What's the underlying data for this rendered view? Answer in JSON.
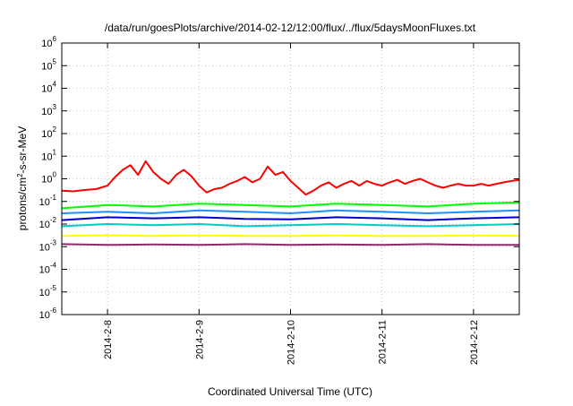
{
  "chart_data": {
    "type": "line",
    "title": "/data/run/goesPlots/archive/2014-02-12/12:00/flux/../flux/5daysMoonFluxes.txt",
    "xlabel": "Coordinated Universal Time (UTC)",
    "ylabel_parts": {
      "before": "protons/cm",
      "sup": "2",
      "after": "-s-sr-MeV"
    },
    "y_scale": "log",
    "ylim": [
      1e-06,
      1000000.0
    ],
    "y_ticks": [
      {
        "value": 1e-06,
        "base": "10",
        "exp": "-6"
      },
      {
        "value": 1e-05,
        "base": "10",
        "exp": "-5"
      },
      {
        "value": 0.0001,
        "base": "10",
        "exp": "-4"
      },
      {
        "value": 0.001,
        "base": "10",
        "exp": "-3"
      },
      {
        "value": 0.01,
        "base": "10",
        "exp": "-2"
      },
      {
        "value": 0.1,
        "base": "10",
        "exp": "-1"
      },
      {
        "value": 1,
        "base": "10",
        "exp": "0"
      },
      {
        "value": 10,
        "base": "10",
        "exp": "1"
      },
      {
        "value": 100,
        "base": "10",
        "exp": "2"
      },
      {
        "value": 1000,
        "base": "10",
        "exp": "3"
      },
      {
        "value": 10000,
        "base": "10",
        "exp": "4"
      },
      {
        "value": 100000,
        "base": "10",
        "exp": "5"
      },
      {
        "value": 1000000,
        "base": "10",
        "exp": "6"
      }
    ],
    "xlim": [
      "2014-02-07T12:00",
      "2014-02-12T12:00"
    ],
    "x_ticks": [
      {
        "value": "2014-02-08T00:00",
        "label": "2014-2-8"
      },
      {
        "value": "2014-02-09T00:00",
        "label": "2014-2-9"
      },
      {
        "value": "2014-02-10T00:00",
        "label": "2014-2-10"
      },
      {
        "value": "2014-02-11T00:00",
        "label": "2014-2-11"
      },
      {
        "value": "2014-02-12T00:00",
        "label": "2014-2-12"
      }
    ],
    "grid": true,
    "legend": "none",
    "series": [
      {
        "color": "#ff0000",
        "values": [
          [
            "2014-02-07T12:00",
            0.3
          ],
          [
            "2014-02-07T15:00",
            0.28
          ],
          [
            "2014-02-07T18:00",
            0.32
          ],
          [
            "2014-02-07T21:00",
            0.35
          ],
          [
            "2014-02-08T00:00",
            0.5
          ],
          [
            "2014-02-08T02:00",
            1.2
          ],
          [
            "2014-02-08T04:00",
            2.5
          ],
          [
            "2014-02-08T06:00",
            4.0
          ],
          [
            "2014-02-08T08:00",
            1.5
          ],
          [
            "2014-02-08T10:00",
            6.0
          ],
          [
            "2014-02-08T12:00",
            2.0
          ],
          [
            "2014-02-08T14:00",
            1.0
          ],
          [
            "2014-02-08T16:00",
            0.6
          ],
          [
            "2014-02-08T18:00",
            1.5
          ],
          [
            "2014-02-08T20:00",
            2.5
          ],
          [
            "2014-02-08T22:00",
            1.3
          ],
          [
            "2014-02-09T00:00",
            0.5
          ],
          [
            "2014-02-09T02:00",
            0.25
          ],
          [
            "2014-02-09T04:00",
            0.35
          ],
          [
            "2014-02-09T06:00",
            0.4
          ],
          [
            "2014-02-09T08:00",
            0.6
          ],
          [
            "2014-02-09T10:00",
            0.8
          ],
          [
            "2014-02-09T12:00",
            1.2
          ],
          [
            "2014-02-09T14:00",
            0.7
          ],
          [
            "2014-02-09T16:00",
            1.0
          ],
          [
            "2014-02-09T18:00",
            3.5
          ],
          [
            "2014-02-09T20:00",
            1.5
          ],
          [
            "2014-02-09T22:00",
            2.0
          ],
          [
            "2014-02-10T00:00",
            0.8
          ],
          [
            "2014-02-10T02:00",
            0.4
          ],
          [
            "2014-02-10T04:00",
            0.2
          ],
          [
            "2014-02-10T06:00",
            0.3
          ],
          [
            "2014-02-10T08:00",
            0.5
          ],
          [
            "2014-02-10T10:00",
            0.7
          ],
          [
            "2014-02-10T12:00",
            0.4
          ],
          [
            "2014-02-10T14:00",
            0.6
          ],
          [
            "2014-02-10T16:00",
            0.8
          ],
          [
            "2014-02-10T18:00",
            0.5
          ],
          [
            "2014-02-10T20:00",
            0.8
          ],
          [
            "2014-02-10T22:00",
            0.6
          ],
          [
            "2014-02-11T00:00",
            0.5
          ],
          [
            "2014-02-11T02:00",
            0.7
          ],
          [
            "2014-02-11T04:00",
            0.9
          ],
          [
            "2014-02-11T06:00",
            0.6
          ],
          [
            "2014-02-11T08:00",
            0.8
          ],
          [
            "2014-02-11T10:00",
            1.0
          ],
          [
            "2014-02-11T12:00",
            0.7
          ],
          [
            "2014-02-11T14:00",
            0.5
          ],
          [
            "2014-02-11T16:00",
            0.4
          ],
          [
            "2014-02-11T18:00",
            0.5
          ],
          [
            "2014-02-11T20:00",
            0.6
          ],
          [
            "2014-02-11T22:00",
            0.5
          ],
          [
            "2014-02-12T00:00",
            0.5
          ],
          [
            "2014-02-12T02:00",
            0.6
          ],
          [
            "2014-02-12T04:00",
            0.5
          ],
          [
            "2014-02-12T06:00",
            0.6
          ],
          [
            "2014-02-12T08:00",
            0.7
          ],
          [
            "2014-02-12T10:00",
            0.8
          ],
          [
            "2014-02-12T12:00",
            0.9
          ]
        ]
      },
      {
        "color": "#00ff00",
        "values": [
          [
            "2014-02-07T12:00",
            0.05
          ],
          [
            "2014-02-08T00:00",
            0.07
          ],
          [
            "2014-02-08T12:00",
            0.06
          ],
          [
            "2014-02-09T00:00",
            0.08
          ],
          [
            "2014-02-09T12:00",
            0.07
          ],
          [
            "2014-02-10T00:00",
            0.06
          ],
          [
            "2014-02-10T12:00",
            0.08
          ],
          [
            "2014-02-11T00:00",
            0.07
          ],
          [
            "2014-02-11T12:00",
            0.06
          ],
          [
            "2014-02-12T00:00",
            0.08
          ],
          [
            "2014-02-12T12:00",
            0.09
          ]
        ]
      },
      {
        "color": "#1e90ff",
        "values": [
          [
            "2014-02-07T12:00",
            0.03
          ],
          [
            "2014-02-08T00:00",
            0.035
          ],
          [
            "2014-02-08T12:00",
            0.03
          ],
          [
            "2014-02-09T00:00",
            0.04
          ],
          [
            "2014-02-09T12:00",
            0.035
          ],
          [
            "2014-02-10T00:00",
            0.03
          ],
          [
            "2014-02-10T12:00",
            0.04
          ],
          [
            "2014-02-11T00:00",
            0.035
          ],
          [
            "2014-02-11T12:00",
            0.03
          ],
          [
            "2014-02-12T00:00",
            0.035
          ],
          [
            "2014-02-12T12:00",
            0.04
          ]
        ]
      },
      {
        "color": "#0000cc",
        "values": [
          [
            "2014-02-07T12:00",
            0.015
          ],
          [
            "2014-02-08T00:00",
            0.02
          ],
          [
            "2014-02-08T12:00",
            0.018
          ],
          [
            "2014-02-09T00:00",
            0.02
          ],
          [
            "2014-02-09T12:00",
            0.017
          ],
          [
            "2014-02-10T00:00",
            0.016
          ],
          [
            "2014-02-10T12:00",
            0.02
          ],
          [
            "2014-02-11T00:00",
            0.018
          ],
          [
            "2014-02-11T12:00",
            0.015
          ],
          [
            "2014-02-12T00:00",
            0.018
          ],
          [
            "2014-02-12T12:00",
            0.02
          ]
        ]
      },
      {
        "color": "#00cccc",
        "values": [
          [
            "2014-02-07T12:00",
            0.008
          ],
          [
            "2014-02-08T00:00",
            0.01
          ],
          [
            "2014-02-08T12:00",
            0.009
          ],
          [
            "2014-02-09T00:00",
            0.01
          ],
          [
            "2014-02-09T12:00",
            0.008
          ],
          [
            "2014-02-10T00:00",
            0.009
          ],
          [
            "2014-02-10T12:00",
            0.01
          ],
          [
            "2014-02-11T00:00",
            0.009
          ],
          [
            "2014-02-11T12:00",
            0.008
          ],
          [
            "2014-02-12T00:00",
            0.009
          ],
          [
            "2014-02-12T12:00",
            0.01
          ]
        ]
      },
      {
        "color": "#ffff00",
        "values": [
          [
            "2014-02-07T12:00",
            0.003
          ],
          [
            "2014-02-08T00:00",
            0.0032
          ],
          [
            "2014-02-08T12:00",
            0.003
          ],
          [
            "2014-02-09T00:00",
            0.0031
          ],
          [
            "2014-02-09T12:00",
            0.003
          ],
          [
            "2014-02-10T00:00",
            0.003
          ],
          [
            "2014-02-10T12:00",
            0.0031
          ],
          [
            "2014-02-11T00:00",
            0.003
          ],
          [
            "2014-02-11T12:00",
            0.003
          ],
          [
            "2014-02-12T00:00",
            0.0031
          ],
          [
            "2014-02-12T12:00",
            0.003
          ]
        ]
      },
      {
        "color": "#8b2a6e",
        "values": [
          [
            "2014-02-07T12:00",
            0.0013
          ],
          [
            "2014-02-08T00:00",
            0.0012
          ],
          [
            "2014-02-08T12:00",
            0.00125
          ],
          [
            "2014-02-09T00:00",
            0.0012
          ],
          [
            "2014-02-09T12:00",
            0.0013
          ],
          [
            "2014-02-10T00:00",
            0.0012
          ],
          [
            "2014-02-10T12:00",
            0.00125
          ],
          [
            "2014-02-11T00:00",
            0.0012
          ],
          [
            "2014-02-11T12:00",
            0.0013
          ],
          [
            "2014-02-12T00:00",
            0.0012
          ],
          [
            "2014-02-12T12:00",
            0.0012
          ]
        ]
      }
    ]
  }
}
